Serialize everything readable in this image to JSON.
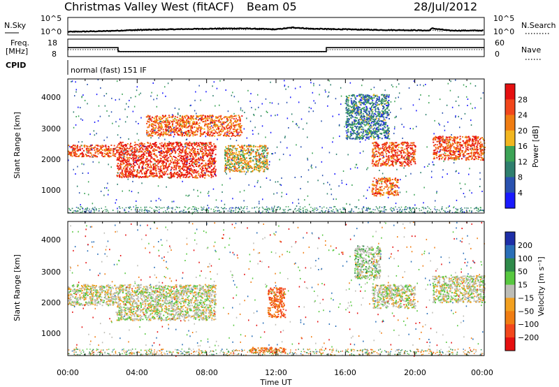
{
  "header": {
    "title": "Christmas Valley West (fitACF)",
    "beam": "Beam 05",
    "date": "28/Jul/2012"
  },
  "top_panel": {
    "left_label": "N.Sky",
    "right_label": "N.Search",
    "left_ticks": [
      "10^5",
      "10^0"
    ],
    "right_ticks": [
      "10^5",
      "10^0"
    ]
  },
  "freq_panel": {
    "left_label_1": "Freq.",
    "left_label_2": "[MHz]",
    "right_label": "Nave",
    "left_ticks": [
      "18",
      "8"
    ],
    "right_ticks": [
      "60",
      "0"
    ]
  },
  "cpid": {
    "label": "CPID",
    "mode": "normal (fast) 151 IF"
  },
  "power_panel": {
    "ylabel": "Slant Range [km]",
    "yticks": [
      "1000",
      "2000",
      "3000",
      "4000"
    ],
    "colorbar_label": "Power [dB]",
    "colorbar_ticks": [
      "4",
      "8",
      "12",
      "16",
      "20",
      "24",
      "28"
    ],
    "colorbar_colors": [
      "#1a1aff",
      "#2a52b0",
      "#2f7f6e",
      "#3ca356",
      "#f2b620",
      "#f07d12",
      "#f2471c",
      "#e51010"
    ]
  },
  "velocity_panel": {
    "ylabel": "Slant Range [km]",
    "yticks": [
      "1000",
      "2000",
      "3000",
      "4000"
    ],
    "colorbar_label": "Velocity [m s⁻¹]",
    "colorbar_ticks": [
      "200",
      "100",
      "50",
      "15",
      "−15",
      "−50",
      "−100",
      "−200"
    ],
    "colorbar_colors": [
      "#1e2fa8",
      "#2a6fb8",
      "#2f8a4a",
      "#58c840",
      "#bdbdb6",
      "#f2a020",
      "#f07d12",
      "#f2471c",
      "#e51010"
    ]
  },
  "xaxis": {
    "label": "Time UT",
    "ticks": [
      "00:00",
      "04:00",
      "08:00",
      "12:00",
      "16:00",
      "20:00",
      "00:00"
    ]
  },
  "chart_data": [
    {
      "type": "line",
      "panel": "noise",
      "x_unit": "hours UT",
      "series_sky": {
        "x": [
          0,
          2,
          4,
          6,
          8,
          10,
          12,
          13,
          14,
          16,
          18,
          20,
          20.8,
          21,
          22,
          24
        ],
        "y_log10": [
          0.8,
          1.0,
          1.4,
          1.6,
          1.8,
          1.9,
          1.6,
          2.2,
          1.8,
          1.6,
          1.4,
          1.3,
          1.2,
          1.9,
          1.2,
          1.2
        ]
      },
      "series_search": {
        "x": [
          0,
          4,
          8,
          12,
          13,
          14,
          18,
          22,
          24
        ],
        "y_log10": [
          0.7,
          1.2,
          1.6,
          1.5,
          2.0,
          1.6,
          1.3,
          1.1,
          1.1
        ]
      }
    },
    {
      "type": "line",
      "panel": "frequency",
      "x_unit": "hours UT",
      "freq_mhz": {
        "x": [
          0,
          2.9,
          2.9,
          14.9,
          14.9,
          24
        ],
        "y": [
          16,
          16,
          12.5,
          12.5,
          16,
          16
        ]
      },
      "nave": {
        "x": [
          0,
          2.9,
          3,
          14.9,
          15,
          24
        ],
        "y": [
          30,
          30,
          20,
          20,
          30,
          30
        ]
      }
    },
    {
      "type": "heatmap",
      "panel": "power",
      "x_unit": "hours UT",
      "y_unit": "km",
      "zlim": [
        0,
        30
      ],
      "features": [
        {
          "t": [
            0,
            2.8
          ],
          "range_km": [
            1900,
            2300
          ],
          "power_db": 26
        },
        {
          "t": [
            2.8,
            8.5
          ],
          "range_km": [
            1200,
            2400
          ],
          "power_db": 28
        },
        {
          "t": [
            4.5,
            10
          ],
          "range_km": [
            2600,
            3300
          ],
          "power_db": 24
        },
        {
          "t": [
            9,
            11.5
          ],
          "range_km": [
            1400,
            2300
          ],
          "power_db": 18
        },
        {
          "t": [
            16,
            18.5
          ],
          "range_km": [
            2500,
            4000
          ],
          "power_db": 10
        },
        {
          "t": [
            17.5,
            20
          ],
          "range_km": [
            1600,
            2400
          ],
          "power_db": 26
        },
        {
          "t": [
            17.5,
            19
          ],
          "range_km": [
            600,
            1200
          ],
          "power_db": 24
        },
        {
          "t": [
            21,
            24
          ],
          "range_km": [
            1800,
            2600
          ],
          "power_db": 26
        }
      ]
    },
    {
      "type": "heatmap",
      "panel": "velocity",
      "x_unit": "hours UT",
      "y_unit": "km",
      "zlim": [
        -200,
        200
      ],
      "features": [
        {
          "t": [
            0,
            2.8
          ],
          "range_km": [
            1700,
            2400
          ],
          "velocity": 0
        },
        {
          "t": [
            2.8,
            8.5
          ],
          "range_km": [
            1200,
            2400
          ],
          "velocity": 0
        },
        {
          "t": [
            11.5,
            12.5
          ],
          "range_km": [
            1300,
            2300
          ],
          "velocity": -80
        },
        {
          "t": [
            10.5,
            12.5
          ],
          "range_km": [
            100,
            300
          ],
          "velocity": -60
        },
        {
          "t": [
            16.5,
            18
          ],
          "range_km": [
            2600,
            3700
          ],
          "velocity": 10
        },
        {
          "t": [
            17.5,
            20
          ],
          "range_km": [
            1600,
            2400
          ],
          "velocity": 0
        },
        {
          "t": [
            21,
            24
          ],
          "range_km": [
            1800,
            2700
          ],
          "velocity": 0
        }
      ]
    }
  ]
}
